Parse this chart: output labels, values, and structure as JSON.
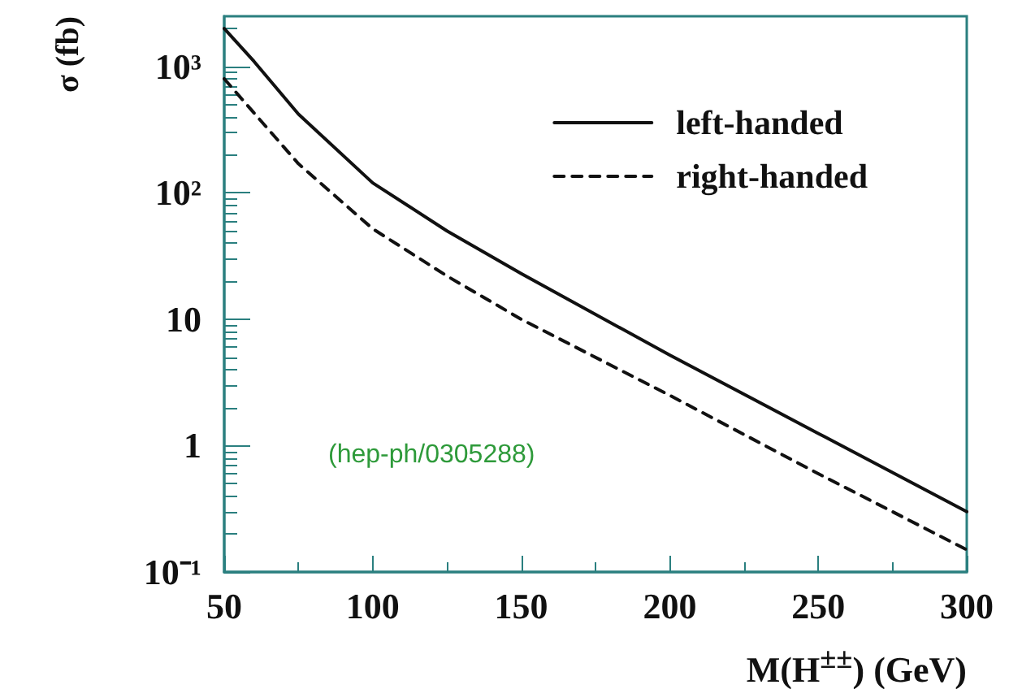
{
  "chart_data": {
    "type": "line",
    "xlabel": "M(H$^{±±}$) (GeV)",
    "ylabel": "σ (fb)",
    "log": "y",
    "legend": "top right",
    "grid": false,
    "marker": "none",
    "x": [
      50,
      60,
      75,
      100,
      125,
      150,
      200,
      250,
      300
    ],
    "xlim": [
      50,
      300
    ],
    "xticks": [
      50,
      100,
      150,
      200,
      250,
      300
    ],
    "ylim": [
      0.1,
      2500
    ],
    "yticks": [
      {
        "value": 0.1,
        "label": "10⁻¹"
      },
      1,
      10,
      {
        "value": 100,
        "label": "10²"
      },
      {
        "value": 1000,
        "label": "10³"
      }
    ],
    "series": [
      {
        "name": "left-handed",
        "color": "#111111",
        "line_style": "solid",
        "values": [
          2000,
          1100,
          420,
          120,
          50,
          23,
          5.2,
          1.25,
          0.3
        ]
      },
      {
        "name": "right-handed",
        "color": "#111111",
        "line_style": "dashed",
        "values": [
          800,
          430,
          170,
          52,
          22,
          10,
          2.5,
          0.6,
          0.15
        ]
      }
    ],
    "annotations": [
      "(hep-ph/0305288)"
    ]
  }
}
